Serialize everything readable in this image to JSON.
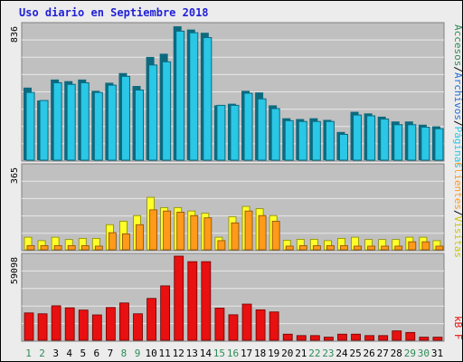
{
  "title": "Uso diario en Septiembre 2018",
  "colors": {
    "page_bg": "#ececec",
    "plot_bg": "#c0c0c0",
    "grid": "#e8e8e8",
    "title": "#1f1fd6",
    "visitas": "#2ac7e6",
    "visitas_dark": "#0c6a7f",
    "paginas": "#ff9a1a",
    "paginas_dark": "#8a4a00",
    "solicitudes": "#ffff2a",
    "kb": "#e81010",
    "kb_dark": "#700000",
    "weekend_tick": "#2e8b57",
    "weekday_tick": "#000000"
  },
  "legend": {
    "accesos": "Accesos",
    "archivos": "Archivos",
    "paginas": "Páginas",
    "clientes": "Clientes",
    "visitas": "Visitas",
    "kb": "kB F",
    "sep": "/"
  },
  "chart_data": [
    {
      "type": "bar",
      "panel": "top",
      "ymax_label": "836",
      "ymax": 836,
      "categories": [
        "1",
        "2",
        "3",
        "4",
        "5",
        "6",
        "7",
        "8",
        "9",
        "10",
        "11",
        "12",
        "13",
        "14",
        "15",
        "16",
        "17",
        "18",
        "19",
        "20",
        "21",
        "22",
        "23",
        "24",
        "25",
        "26",
        "27",
        "28",
        "29",
        "30",
        "31"
      ],
      "series": [
        {
          "name": "Visitas",
          "values": [
            450,
            370,
            500,
            490,
            500,
            430,
            480,
            540,
            460,
            640,
            660,
            830,
            810,
            790,
            340,
            350,
            430,
            420,
            340,
            260,
            255,
            260,
            250,
            175,
            300,
            290,
            270,
            240,
            240,
            220,
            210
          ]
        },
        {
          "name": "Archivos",
          "values": [
            420,
            370,
            480,
            470,
            480,
            420,
            465,
            520,
            435,
            590,
            610,
            800,
            790,
            760,
            340,
            340,
            415,
            380,
            320,
            245,
            240,
            240,
            240,
            160,
            280,
            275,
            255,
            220,
            220,
            205,
            195
          ]
        }
      ]
    },
    {
      "type": "bar",
      "panel": "middle",
      "ymax_label": "365",
      "ymax": 365,
      "categories": [
        "1",
        "2",
        "3",
        "4",
        "5",
        "6",
        "7",
        "8",
        "9",
        "10",
        "11",
        "12",
        "13",
        "14",
        "15",
        "16",
        "17",
        "18",
        "19",
        "20",
        "21",
        "22",
        "23",
        "24",
        "25",
        "26",
        "27",
        "28",
        "29",
        "30",
        "31"
      ],
      "series": [
        {
          "name": "Solicitudes",
          "values": [
            55,
            40,
            55,
            45,
            50,
            50,
            110,
            125,
            150,
            230,
            185,
            185,
            170,
            160,
            55,
            145,
            190,
            180,
            150,
            42,
            46,
            46,
            40,
            50,
            55,
            45,
            45,
            45,
            55,
            55,
            40
          ]
        },
        {
          "name": "Páginas",
          "values": [
            18,
            18,
            18,
            18,
            18,
            16,
            75,
            70,
            110,
            175,
            170,
            165,
            150,
            140,
            40,
            118,
            170,
            150,
            125,
            16,
            18,
            18,
            18,
            18,
            16,
            16,
            16,
            16,
            35,
            35,
            16
          ]
        }
      ]
    },
    {
      "type": "bar",
      "panel": "bottom",
      "ymax_label": "59098",
      "ymax": 59098,
      "categories": [
        "1",
        "2",
        "3",
        "4",
        "5",
        "6",
        "7",
        "8",
        "9",
        "10",
        "11",
        "12",
        "13",
        "14",
        "15",
        "16",
        "17",
        "18",
        "19",
        "20",
        "21",
        "22",
        "23",
        "24",
        "25",
        "26",
        "27",
        "28",
        "29",
        "30",
        "31"
      ],
      "series": [
        {
          "name": "kB F",
          "values": [
            19200,
            18600,
            24200,
            22800,
            21200,
            17800,
            23000,
            26200,
            18600,
            29400,
            38200,
            59098,
            55200,
            55200,
            22600,
            17900,
            25400,
            21400,
            19900,
            4300,
            3300,
            3300,
            2200,
            4300,
            4300,
            3300,
            3300,
            6600,
            5500,
            2200,
            2200
          ]
        }
      ]
    }
  ]
}
